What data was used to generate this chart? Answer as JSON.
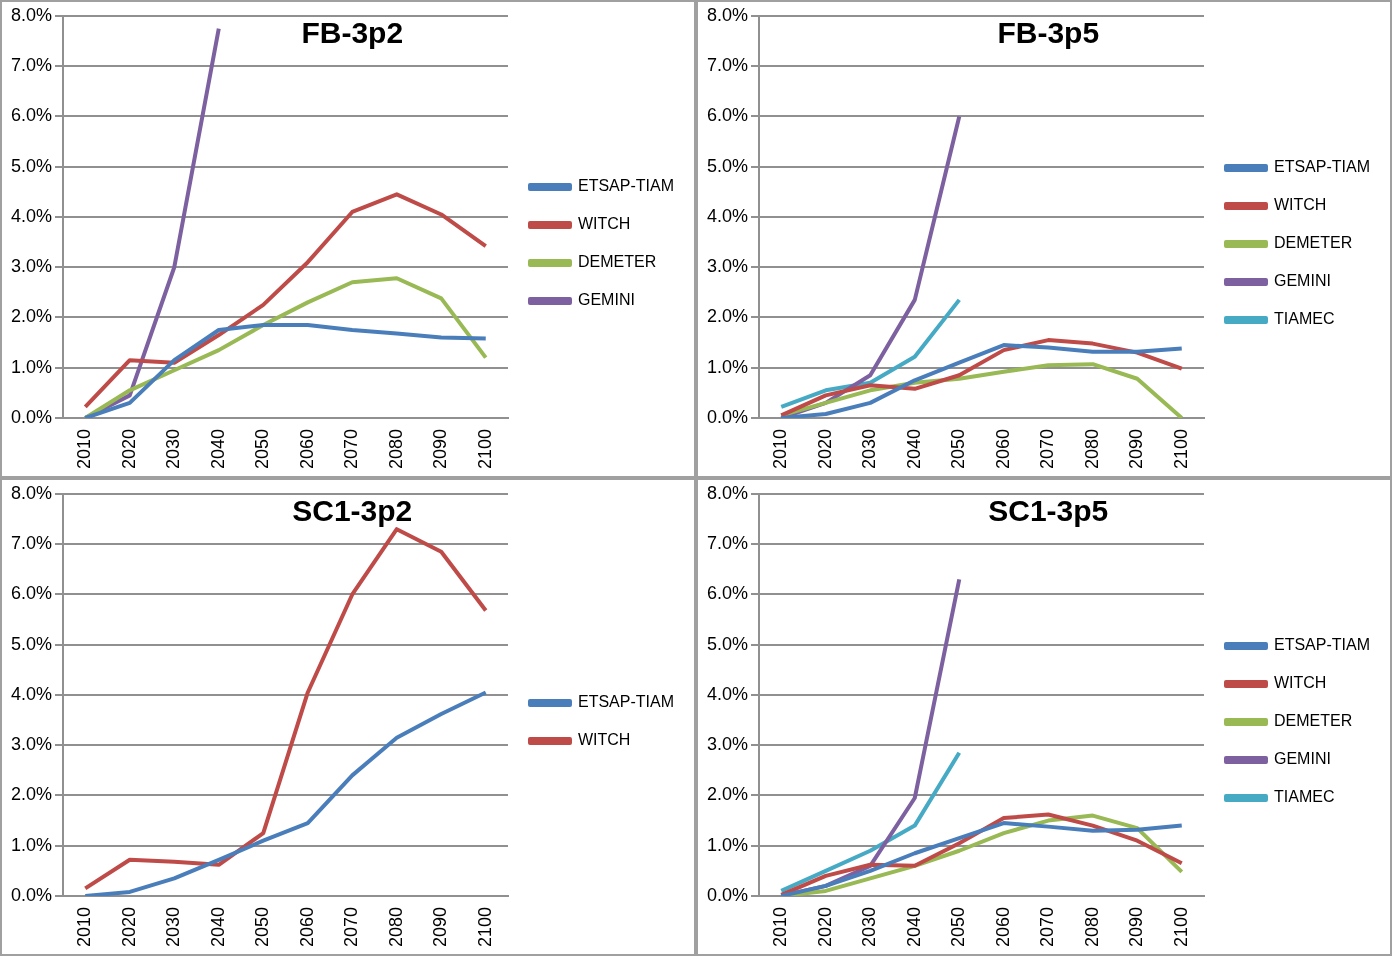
{
  "chart_data": [
    {
      "type": "line",
      "title": "FB-3p2",
      "categories": [
        "2010",
        "2020",
        "2030",
        "2040",
        "2050",
        "2060",
        "2070",
        "2080",
        "2090",
        "2100"
      ],
      "ylim": [
        0,
        8
      ],
      "yticks": [
        {
          "value": 0,
          "label": "0.0%"
        },
        {
          "value": 1,
          "label": "1.0%"
        },
        {
          "value": 2,
          "label": "2.0%"
        },
        {
          "value": 3,
          "label": "3.0%"
        },
        {
          "value": 4,
          "label": "4.0%"
        },
        {
          "value": 5,
          "label": "5.0%"
        },
        {
          "value": 6,
          "label": "6.0%"
        },
        {
          "value": 7,
          "label": "7.0%"
        },
        {
          "value": 8,
          "label": "8.0%"
        }
      ],
      "grid": "y",
      "legend": "right",
      "marker": "none",
      "series": [
        {
          "name": "ETSAP-TIAM",
          "color": "#4a7ebb",
          "values": [
            0,
            0.3,
            1.15,
            1.75,
            1.85,
            1.85,
            1.75,
            1.68,
            1.6,
            1.58
          ]
        },
        {
          "name": "WITCH",
          "color": "#be4b48",
          "values": [
            0.22,
            1.15,
            1.1,
            1.65,
            2.25,
            3.1,
            4.1,
            4.45,
            4.05,
            3.42
          ]
        },
        {
          "name": "DEMETER",
          "color": "#98b954",
          "values": [
            0,
            0.55,
            0.95,
            1.35,
            1.85,
            2.3,
            2.7,
            2.78,
            2.38,
            1.2
          ]
        },
        {
          "name": "GEMINI",
          "color": "#7d60a0",
          "values": [
            0,
            0.45,
            3.0,
            7.75,
            null,
            null,
            null,
            null,
            null,
            null
          ]
        }
      ]
    },
    {
      "type": "line",
      "title": "FB-3p5",
      "categories": [
        "2010",
        "2020",
        "2030",
        "2040",
        "2050",
        "2060",
        "2070",
        "2080",
        "2090",
        "2100"
      ],
      "ylim": [
        0,
        8
      ],
      "yticks": [
        {
          "value": 0,
          "label": "0.0%"
        },
        {
          "value": 1,
          "label": "1.0%"
        },
        {
          "value": 2,
          "label": "2.0%"
        },
        {
          "value": 3,
          "label": "3.0%"
        },
        {
          "value": 4,
          "label": "4.0%"
        },
        {
          "value": 5,
          "label": "5.0%"
        },
        {
          "value": 6,
          "label": "6.0%"
        },
        {
          "value": 7,
          "label": "7.0%"
        },
        {
          "value": 8,
          "label": "8.0%"
        }
      ],
      "grid": "y",
      "legend": "right",
      "marker": "none",
      "series": [
        {
          "name": "ETSAP-TIAM",
          "color": "#4a7ebb",
          "values": [
            0,
            0.08,
            0.3,
            0.75,
            1.1,
            1.45,
            1.4,
            1.32,
            1.32,
            1.38
          ]
        },
        {
          "name": "WITCH",
          "color": "#be4b48",
          "values": [
            0.05,
            0.45,
            0.65,
            0.58,
            0.85,
            1.35,
            1.55,
            1.48,
            1.3,
            0.98
          ]
        },
        {
          "name": "DEMETER",
          "color": "#98b954",
          "values": [
            0.05,
            0.3,
            0.55,
            0.7,
            0.78,
            0.92,
            1.05,
            1.07,
            0.78,
            0
          ]
        },
        {
          "name": "GEMINI",
          "color": "#7d60a0",
          "values": [
            0,
            0.3,
            0.85,
            2.35,
            6.0,
            null,
            null,
            null,
            null,
            null
          ]
        },
        {
          "name": "TIAMEC",
          "color": "#46aac5",
          "values": [
            0.22,
            0.55,
            0.7,
            1.22,
            2.35,
            null,
            null,
            null,
            null,
            null
          ]
        }
      ]
    },
    {
      "type": "line",
      "title": "SC1-3p2",
      "categories": [
        "2010",
        "2020",
        "2030",
        "2040",
        "2050",
        "2060",
        "2070",
        "2080",
        "2090",
        "2100"
      ],
      "ylim": [
        0,
        8
      ],
      "yticks": [
        {
          "value": 0,
          "label": "0.0%"
        },
        {
          "value": 1,
          "label": "1.0%"
        },
        {
          "value": 2,
          "label": "2.0%"
        },
        {
          "value": 3,
          "label": "3.0%"
        },
        {
          "value": 4,
          "label": "4.0%"
        },
        {
          "value": 5,
          "label": "5.0%"
        },
        {
          "value": 6,
          "label": "6.0%"
        },
        {
          "value": 7,
          "label": "7.0%"
        },
        {
          "value": 8,
          "label": "8.0%"
        }
      ],
      "grid": "y",
      "legend": "right",
      "marker": "none",
      "series": [
        {
          "name": "ETSAP-TIAM",
          "color": "#4a7ebb",
          "values": [
            0,
            0.08,
            0.35,
            0.72,
            1.1,
            1.45,
            2.4,
            3.15,
            3.62,
            4.05
          ]
        },
        {
          "name": "WITCH",
          "color": "#be4b48",
          "values": [
            0.15,
            0.72,
            0.68,
            0.62,
            1.25,
            4.05,
            6.0,
            7.3,
            6.85,
            5.68
          ]
        }
      ]
    },
    {
      "type": "line",
      "title": "SC1-3p5",
      "categories": [
        "2010",
        "2020",
        "2030",
        "2040",
        "2050",
        "2060",
        "2070",
        "2080",
        "2090",
        "2100"
      ],
      "ylim": [
        0,
        8
      ],
      "yticks": [
        {
          "value": 0,
          "label": "0.0%"
        },
        {
          "value": 1,
          "label": "1.0%"
        },
        {
          "value": 2,
          "label": "2.0%"
        },
        {
          "value": 3,
          "label": "3.0%"
        },
        {
          "value": 4,
          "label": "4.0%"
        },
        {
          "value": 5,
          "label": "5.0%"
        },
        {
          "value": 6,
          "label": "6.0%"
        },
        {
          "value": 7,
          "label": "7.0%"
        },
        {
          "value": 8,
          "label": "8.0%"
        }
      ],
      "grid": "y",
      "legend": "right",
      "marker": "none",
      "series": [
        {
          "name": "ETSAP-TIAM",
          "color": "#4a7ebb",
          "values": [
            0,
            0.2,
            0.5,
            0.85,
            1.15,
            1.45,
            1.38,
            1.3,
            1.32,
            1.4
          ]
        },
        {
          "name": "WITCH",
          "color": "#be4b48",
          "values": [
            0.02,
            0.4,
            0.62,
            0.6,
            1.05,
            1.55,
            1.62,
            1.4,
            1.1,
            0.65
          ]
        },
        {
          "name": "DEMETER",
          "color": "#98b954",
          "values": [
            0,
            0.1,
            0.35,
            0.6,
            0.9,
            1.25,
            1.5,
            1.6,
            1.35,
            0.48
          ]
        },
        {
          "name": "GEMINI",
          "color": "#7d60a0",
          "values": [
            0,
            0.2,
            0.6,
            1.95,
            6.3,
            null,
            null,
            null,
            null,
            null
          ]
        },
        {
          "name": "TIAMEC",
          "color": "#46aac5",
          "values": [
            0.1,
            0.5,
            0.9,
            1.4,
            2.85,
            null,
            null,
            null,
            null,
            null
          ]
        }
      ]
    }
  ]
}
